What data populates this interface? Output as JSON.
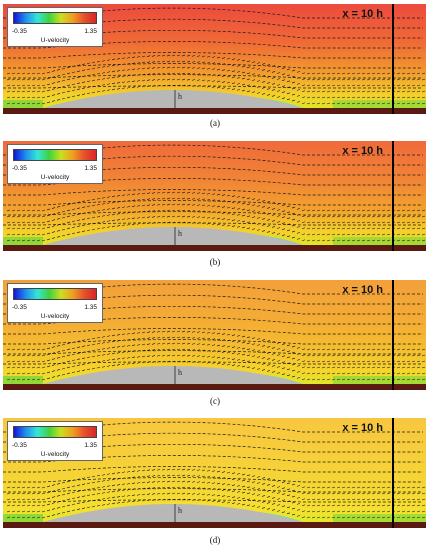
{
  "legend": {
    "min": "-0.35",
    "max": "1.35",
    "title": "U-velocity",
    "colors": [
      "#1515d8",
      "#1e8ef0",
      "#35e6d6",
      "#3fd240",
      "#c8e020",
      "#f0a020",
      "#e8502a",
      "#d82828"
    ]
  },
  "position_label": "x = 10 h",
  "height_label": "h",
  "panels": [
    {
      "caption": "(a)",
      "field": {
        "top": "#ec4a3e",
        "upper_mid": "#f06a36",
        "mid": "#f29a2e",
        "low": "#f4cf2c",
        "near": "#d8ec28"
      }
    },
    {
      "caption": "(b)",
      "field": {
        "top": "#f06a3a",
        "upper_mid": "#f18436",
        "mid": "#f2a22e",
        "low": "#f5cf2c",
        "near": "#d8ec28"
      }
    },
    {
      "caption": "(c)",
      "field": {
        "top": "#f3a03a",
        "upper_mid": "#f4ab35",
        "mid": "#f4bd30",
        "low": "#f6d42d",
        "near": "#d8ec28"
      }
    },
    {
      "caption": "(d)",
      "field": {
        "top": "#f8c640",
        "upper_mid": "#f6cf3a",
        "mid": "#f5d634",
        "low": "#f6df30",
        "near": "#d8ec28"
      }
    }
  ]
}
